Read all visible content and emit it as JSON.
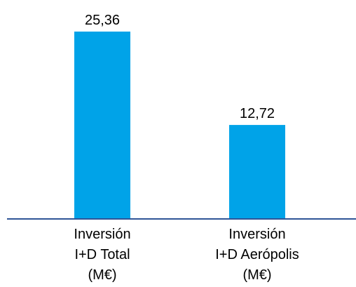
{
  "chart_data": {
    "type": "bar",
    "categories": [
      [
        "Inversión",
        "I+D Total",
        "(M€)"
      ],
      [
        "Inversión",
        "I+D Aerópolis",
        "(M€)"
      ]
    ],
    "values": [
      25.36,
      12.72
    ],
    "data_labels": [
      "25,36",
      "12,72"
    ],
    "title": "",
    "xlabel": "",
    "ylabel": "",
    "ylim": [
      0,
      28
    ],
    "grid": false,
    "legend": "none",
    "bar_color": "#00a3e8",
    "axis_color": "#2f5597"
  }
}
